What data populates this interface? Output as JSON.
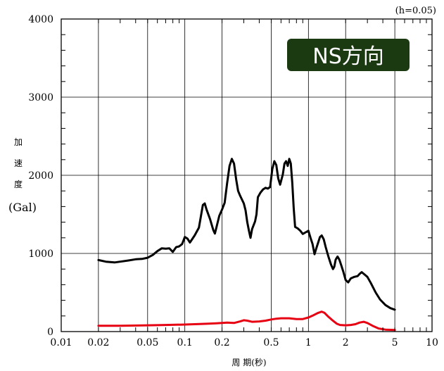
{
  "chart_data": {
    "type": "line",
    "title": "",
    "badge": "NS方向",
    "damping_note": "(h=0.05)",
    "ylabel_chars": [
      "加",
      "速",
      "度"
    ],
    "ylabel_unit": "(Gal)",
    "xlabel": "周 期(秒)",
    "x_scale": "log",
    "xlim": [
      0.01,
      10
    ],
    "ylim": [
      0,
      4000
    ],
    "grid": true,
    "x_ticks": [
      {
        "value": 0.01,
        "label": "0.01"
      },
      {
        "value": 0.02,
        "label": "0.02"
      },
      {
        "value": 0.05,
        "label": "0.05"
      },
      {
        "value": 0.1,
        "label": "0.1"
      },
      {
        "value": 0.2,
        "label": "0.2"
      },
      {
        "value": 0.5,
        "label": "0.5"
      },
      {
        "value": 1,
        "label": "1"
      },
      {
        "value": 2,
        "label": "2"
      },
      {
        "value": 5,
        "label": "5"
      },
      {
        "value": 10,
        "label": "10"
      }
    ],
    "y_ticks": [
      {
        "value": 0,
        "label": "0"
      },
      {
        "value": 1000,
        "label": "1000"
      },
      {
        "value": 2000,
        "label": "2000"
      },
      {
        "value": 3000,
        "label": "3000"
      },
      {
        "value": 4000,
        "label": "4000"
      }
    ],
    "series": [
      {
        "color": "#000000",
        "points": [
          [
            0.02,
            915
          ],
          [
            0.023,
            895
          ],
          [
            0.027,
            885
          ],
          [
            0.03,
            895
          ],
          [
            0.035,
            910
          ],
          [
            0.04,
            925
          ],
          [
            0.045,
            930
          ],
          [
            0.05,
            945
          ],
          [
            0.055,
            980
          ],
          [
            0.06,
            1030
          ],
          [
            0.065,
            1065
          ],
          [
            0.07,
            1060
          ],
          [
            0.075,
            1065
          ],
          [
            0.08,
            1020
          ],
          [
            0.085,
            1080
          ],
          [
            0.09,
            1090
          ],
          [
            0.095,
            1120
          ],
          [
            0.1,
            1210
          ],
          [
            0.105,
            1190
          ],
          [
            0.11,
            1140
          ],
          [
            0.12,
            1230
          ],
          [
            0.13,
            1330
          ],
          [
            0.135,
            1480
          ],
          [
            0.14,
            1620
          ],
          [
            0.145,
            1640
          ],
          [
            0.15,
            1560
          ],
          [
            0.16,
            1440
          ],
          [
            0.17,
            1300
          ],
          [
            0.175,
            1255
          ],
          [
            0.18,
            1330
          ],
          [
            0.19,
            1480
          ],
          [
            0.2,
            1560
          ],
          [
            0.21,
            1650
          ],
          [
            0.22,
            1900
          ],
          [
            0.23,
            2120
          ],
          [
            0.24,
            2210
          ],
          [
            0.25,
            2150
          ],
          [
            0.26,
            1950
          ],
          [
            0.27,
            1800
          ],
          [
            0.28,
            1740
          ],
          [
            0.3,
            1640
          ],
          [
            0.31,
            1550
          ],
          [
            0.32,
            1400
          ],
          [
            0.33,
            1290
          ],
          [
            0.34,
            1200
          ],
          [
            0.35,
            1310
          ],
          [
            0.37,
            1410
          ],
          [
            0.38,
            1500
          ],
          [
            0.39,
            1720
          ],
          [
            0.41,
            1780
          ],
          [
            0.43,
            1820
          ],
          [
            0.45,
            1840
          ],
          [
            0.47,
            1830
          ],
          [
            0.49,
            1850
          ],
          [
            0.51,
            2080
          ],
          [
            0.53,
            2180
          ],
          [
            0.55,
            2130
          ],
          [
            0.57,
            1960
          ],
          [
            0.59,
            1880
          ],
          [
            0.62,
            2010
          ],
          [
            0.64,
            2150
          ],
          [
            0.66,
            2180
          ],
          [
            0.68,
            2120
          ],
          [
            0.7,
            2210
          ],
          [
            0.72,
            2150
          ],
          [
            0.74,
            1900
          ],
          [
            0.76,
            1580
          ],
          [
            0.78,
            1340
          ],
          [
            0.82,
            1320
          ],
          [
            0.86,
            1290
          ],
          [
            0.9,
            1250
          ],
          [
            0.95,
            1270
          ],
          [
            1.0,
            1290
          ],
          [
            1.04,
            1200
          ],
          [
            1.08,
            1120
          ],
          [
            1.12,
            990
          ],
          [
            1.16,
            1070
          ],
          [
            1.2,
            1140
          ],
          [
            1.24,
            1210
          ],
          [
            1.28,
            1230
          ],
          [
            1.33,
            1180
          ],
          [
            1.38,
            1080
          ],
          [
            1.45,
            960
          ],
          [
            1.52,
            860
          ],
          [
            1.58,
            800
          ],
          [
            1.62,
            830
          ],
          [
            1.66,
            920
          ],
          [
            1.72,
            960
          ],
          [
            1.78,
            920
          ],
          [
            1.85,
            840
          ],
          [
            1.92,
            760
          ],
          [
            2.0,
            660
          ],
          [
            2.1,
            630
          ],
          [
            2.2,
            680
          ],
          [
            2.35,
            700
          ],
          [
            2.5,
            710
          ],
          [
            2.6,
            740
          ],
          [
            2.7,
            760
          ],
          [
            2.85,
            730
          ],
          [
            3.0,
            700
          ],
          [
            3.2,
            620
          ],
          [
            3.5,
            500
          ],
          [
            3.8,
            410
          ],
          [
            4.2,
            340
          ],
          [
            4.6,
            300
          ],
          [
            5.0,
            280
          ]
        ]
      },
      {
        "color": "#e60012",
        "points": [
          [
            0.02,
            75
          ],
          [
            0.03,
            75
          ],
          [
            0.05,
            80
          ],
          [
            0.07,
            85
          ],
          [
            0.1,
            90
          ],
          [
            0.12,
            95
          ],
          [
            0.15,
            100
          ],
          [
            0.18,
            105
          ],
          [
            0.2,
            110
          ],
          [
            0.22,
            115
          ],
          [
            0.25,
            110
          ],
          [
            0.28,
            130
          ],
          [
            0.3,
            145
          ],
          [
            0.32,
            140
          ],
          [
            0.35,
            125
          ],
          [
            0.4,
            130
          ],
          [
            0.45,
            140
          ],
          [
            0.5,
            155
          ],
          [
            0.55,
            165
          ],
          [
            0.6,
            170
          ],
          [
            0.7,
            170
          ],
          [
            0.8,
            160
          ],
          [
            0.9,
            160
          ],
          [
            1.0,
            180
          ],
          [
            1.1,
            210
          ],
          [
            1.2,
            240
          ],
          [
            1.28,
            255
          ],
          [
            1.35,
            240
          ],
          [
            1.45,
            190
          ],
          [
            1.55,
            150
          ],
          [
            1.7,
            100
          ],
          [
            1.8,
            85
          ],
          [
            2.0,
            80
          ],
          [
            2.2,
            85
          ],
          [
            2.4,
            95
          ],
          [
            2.6,
            115
          ],
          [
            2.8,
            125
          ],
          [
            3.0,
            110
          ],
          [
            3.3,
            75
          ],
          [
            3.7,
            40
          ],
          [
            4.2,
            25
          ],
          [
            5.0,
            20
          ]
        ]
      }
    ]
  }
}
